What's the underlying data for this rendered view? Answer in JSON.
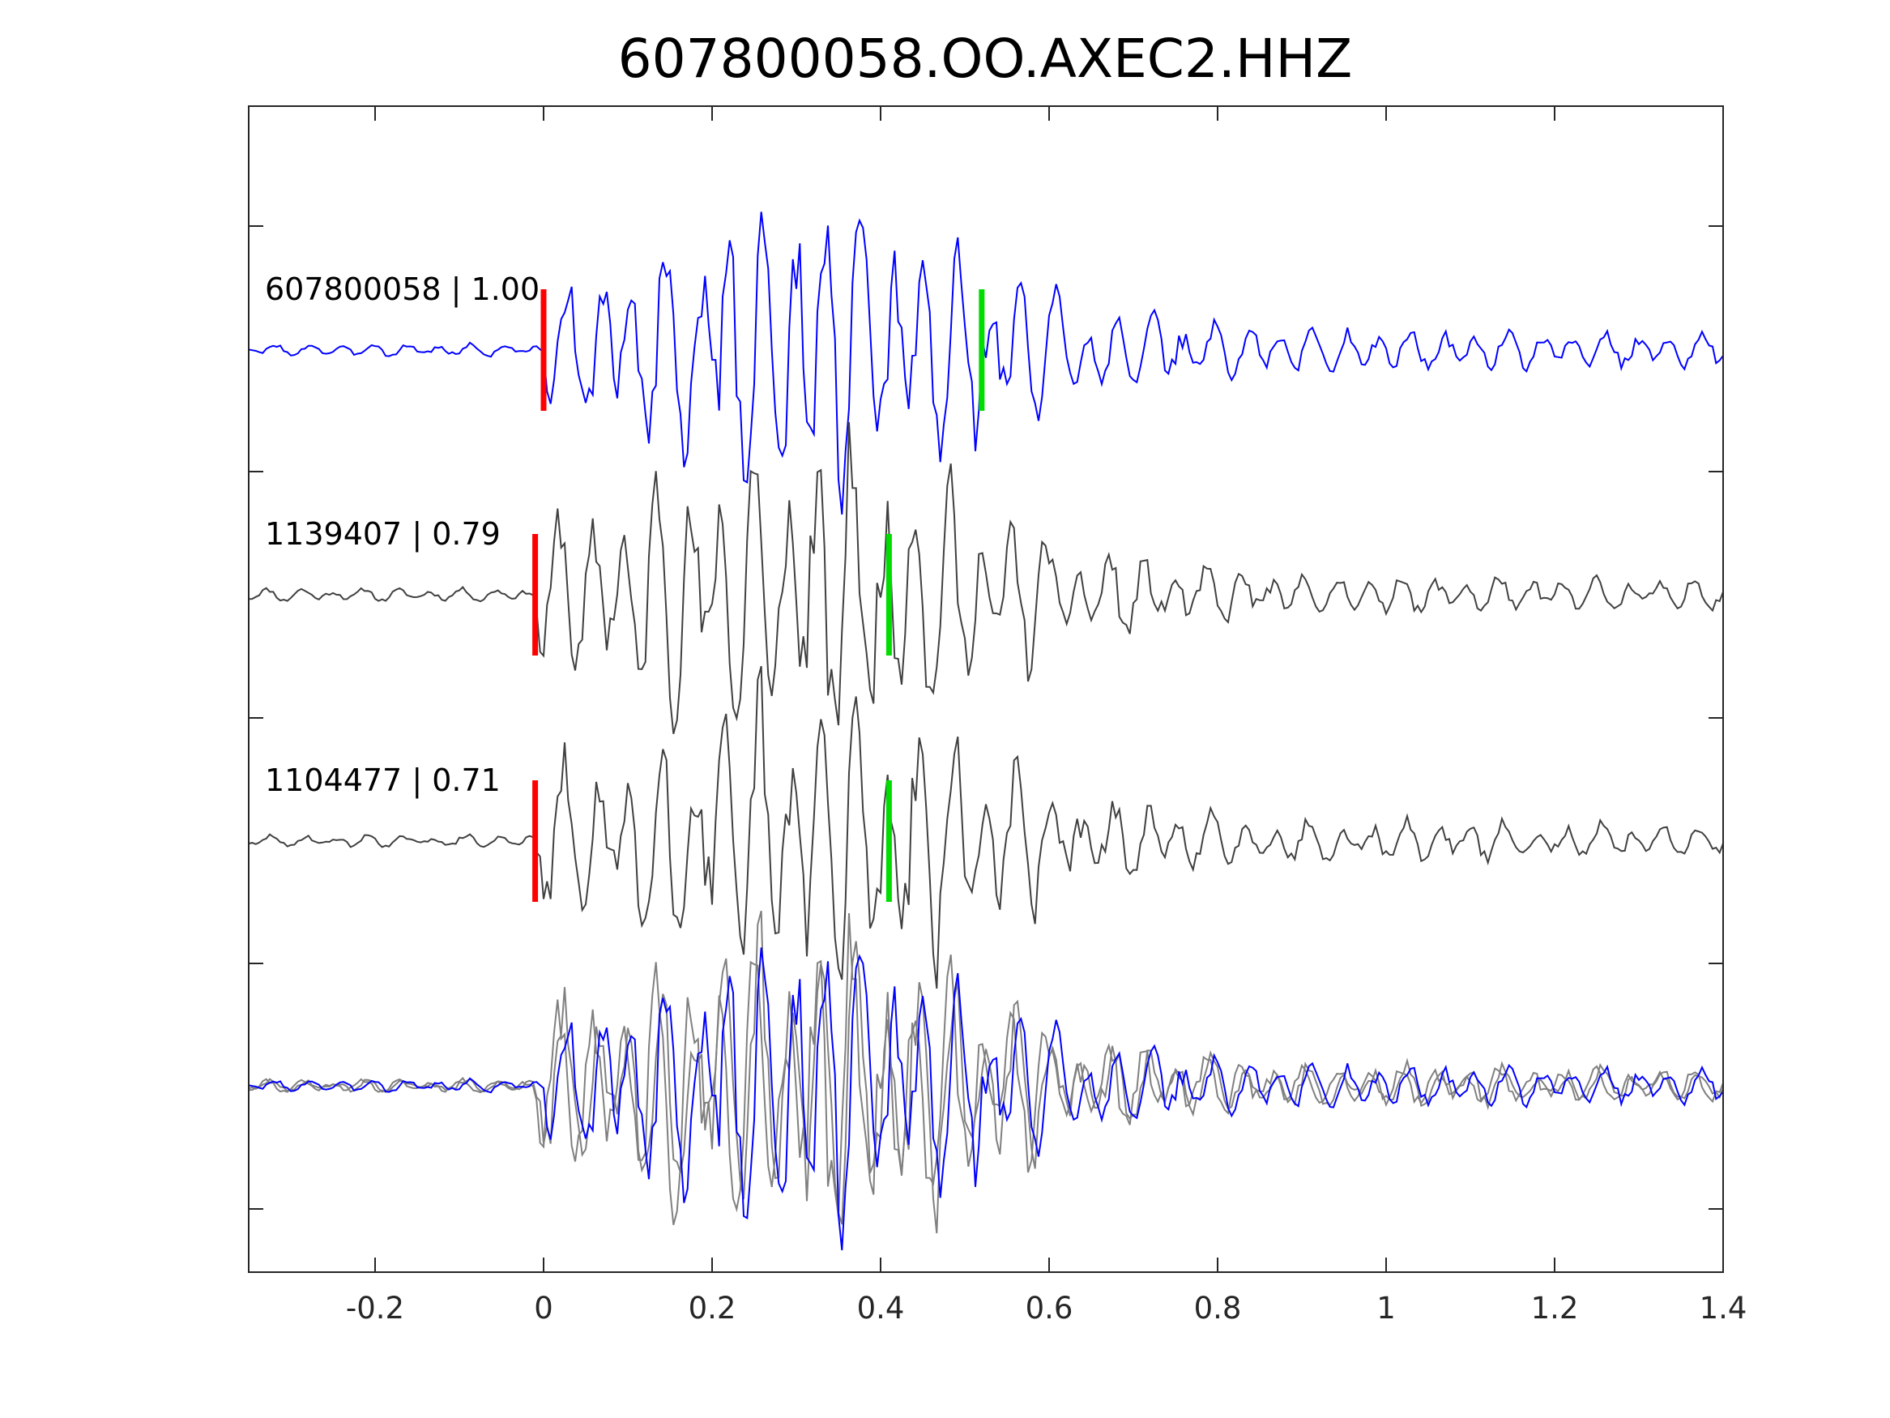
{
  "chart_data": {
    "type": "line",
    "title": "607800058.OO.AXEC2.HHZ",
    "xlabel": "",
    "ylabel": "",
    "xlim": [
      -0.35,
      1.4
    ],
    "xticks": [
      -0.2,
      0,
      0.2,
      0.4,
      0.6,
      0.8,
      1,
      1.2,
      1.4
    ],
    "xtick_labels": [
      "-0.2",
      "0",
      "0.2",
      "0.4",
      "0.6",
      "0.8",
      "1",
      "1.2",
      "1.4"
    ],
    "grid": false,
    "traces": [
      {
        "label": "607800058 | 1.00",
        "color": "#0000ff",
        "p_pick": 0.0,
        "s_pick": 0.52,
        "seed": 3
      },
      {
        "label": "1139407 | 0.79",
        "color": "#404040",
        "p_pick": -0.01,
        "s_pick": 0.41,
        "seed": 11
      },
      {
        "label": "1104477 | 0.71",
        "color": "#404040",
        "p_pick": -0.01,
        "s_pick": 0.41,
        "seed": 29
      }
    ],
    "overlay_colors": [
      "#0000ff",
      "#808080",
      "#808080"
    ],
    "pick_colors": {
      "p": "#ff0000",
      "s": "#00dd00"
    }
  }
}
